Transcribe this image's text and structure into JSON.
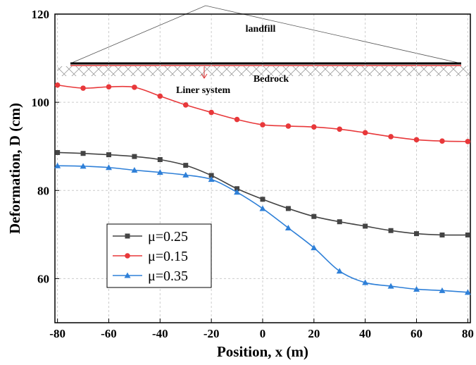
{
  "chart_data": {
    "type": "line",
    "x_label": "Position, x (m)",
    "y_label": "Deformation, D (cm)",
    "annotations": [
      "landfill",
      "Bedrock",
      "Liner system"
    ],
    "x": [
      -80,
      -70,
      -60,
      -50,
      -40,
      -30,
      -20,
      -10,
      0,
      10,
      20,
      30,
      40,
      50,
      60,
      70,
      80
    ],
    "series": [
      {
        "name": "μ=0.25",
        "color": "#444444",
        "marker": "square",
        "values": [
          88.6,
          88.4,
          88.1,
          87.7,
          87.0,
          85.7,
          83.4,
          80.4,
          78.0,
          75.9,
          74.1,
          72.9,
          71.9,
          70.9,
          70.2,
          69.9,
          69.9
        ]
      },
      {
        "name": "μ=0.15",
        "color": "#e8383a",
        "marker": "circle",
        "values": [
          103.9,
          103.2,
          103.5,
          103.4,
          101.4,
          99.4,
          97.7,
          96.1,
          94.9,
          94.6,
          94.4,
          93.9,
          93.1,
          92.2,
          91.5,
          91.2,
          91.1
        ]
      },
      {
        "name": "μ=0.35",
        "color": "#2f80d8",
        "marker": "triangle",
        "values": [
          85.6,
          85.5,
          85.2,
          84.6,
          84.1,
          83.5,
          82.5,
          79.6,
          75.9,
          71.5,
          67.0,
          61.7,
          59.1,
          58.3,
          57.6,
          57.3,
          56.9
        ]
      }
    ],
    "xlim": [
      -81,
      81
    ],
    "xticks": [
      -80,
      -60,
      -40,
      -20,
      0,
      20,
      40,
      60,
      80
    ],
    "ylim": [
      50,
      120
    ],
    "yticks": [
      60,
      80,
      100,
      120
    ],
    "grid": true,
    "legend": "lower left"
  }
}
